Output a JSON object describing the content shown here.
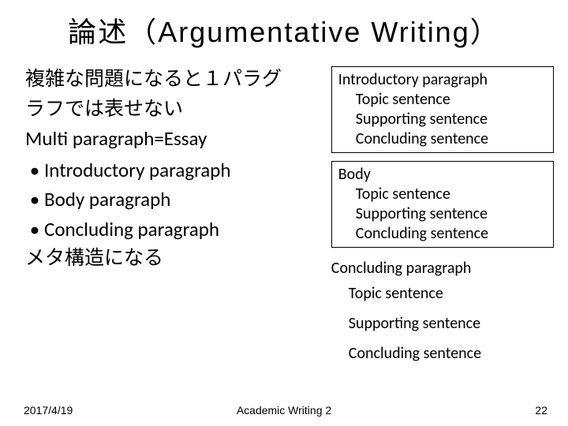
{
  "title": "論述（Argumentative Writing）",
  "left": {
    "jp_line1": "複雑な問題になると１パラグ",
    "jp_line2": "ラフでは表せない",
    "multi": "Multi paragraph=Essay",
    "bullets": [
      "Introductory paragraph",
      "Body paragraph",
      "Concluding paragraph"
    ],
    "meta": "メタ構造になる"
  },
  "right": {
    "box1": {
      "hd": "Introductory paragraph",
      "subs": [
        "Topic sentence",
        "Supporting sentence",
        "Concluding sentence"
      ]
    },
    "box2": {
      "hd": "Body",
      "subs": [
        "Topic sentence",
        "Supporting sentence",
        "Concluding sentence"
      ]
    },
    "concl": {
      "hd": "Concluding paragraph",
      "subs": [
        "Topic sentence",
        "Supporting sentence",
        "Concluding sentence"
      ]
    }
  },
  "footer": {
    "date": "2017/4/19",
    "center": "Academic Writing 2",
    "page": "22"
  },
  "colors": {
    "bg": "#ffffff",
    "text": "#000000",
    "border": "#000000"
  }
}
